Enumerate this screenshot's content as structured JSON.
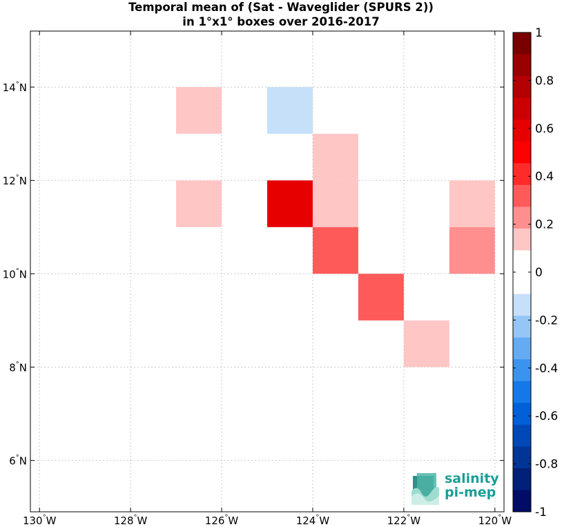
{
  "title": {
    "line1": "Temporal mean of (Sat - Waveglider (SPURS 2))",
    "line2": "in 1°x1° boxes over 2016-2017"
  },
  "logo": {
    "line1": "salinity",
    "line2": "pi-mep",
    "icon": "salinity-wave-logo-icon"
  },
  "chart_data": {
    "type": "heatmap",
    "title": "Temporal mean of (Sat - Waveglider (SPURS 2)) in 1°x1° boxes over 2016-2017",
    "x_axis": {
      "range": [
        -130.2,
        -119.8
      ],
      "ticks": [
        -130,
        -128,
        -126,
        -124,
        -122,
        -120
      ],
      "tick_labels": [
        "130°W",
        "128°W",
        "126°W",
        "124°W",
        "122°W",
        "120°W"
      ],
      "grid": true
    },
    "y_axis": {
      "range": [
        4.9,
        15.2
      ],
      "ticks": [
        6,
        8,
        10,
        12,
        14
      ],
      "tick_labels": [
        "6°N",
        "8°N",
        "10°N",
        "12°N",
        "14°N"
      ],
      "grid": true
    },
    "cells": [
      {
        "lon": [
          -127,
          -126
        ],
        "lat": [
          13,
          14
        ],
        "value": 0.15
      },
      {
        "lon": [
          -125,
          -124
        ],
        "lat": [
          13,
          14
        ],
        "value": -0.15
      },
      {
        "lon": [
          -124,
          -123
        ],
        "lat": [
          12,
          13
        ],
        "value": 0.15
      },
      {
        "lon": [
          -127,
          -126
        ],
        "lat": [
          11,
          12
        ],
        "value": 0.15
      },
      {
        "lon": [
          -125,
          -124
        ],
        "lat": [
          11,
          12
        ],
        "value": 0.55
      },
      {
        "lon": [
          -124,
          -123
        ],
        "lat": [
          11,
          12
        ],
        "value": 0.15
      },
      {
        "lon": [
          -121,
          -120
        ],
        "lat": [
          11,
          12
        ],
        "value": 0.15
      },
      {
        "lon": [
          -124,
          -123
        ],
        "lat": [
          10,
          11
        ],
        "value": 0.35
      },
      {
        "lon": [
          -121,
          -120
        ],
        "lat": [
          10,
          11
        ],
        "value": 0.25
      },
      {
        "lon": [
          -123,
          -122
        ],
        "lat": [
          9,
          10
        ],
        "value": 0.35
      },
      {
        "lon": [
          -122,
          -121
        ],
        "lat": [
          8,
          9
        ],
        "value": 0.15
      }
    ],
    "colorbar": {
      "range": [
        -1,
        1
      ],
      "ticks": [
        1,
        0.8,
        0.6,
        0.4,
        0.2,
        0,
        -0.2,
        -0.4,
        -0.6,
        -0.8,
        -1
      ],
      "tick_labels": [
        "1",
        "0.8",
        "0.6",
        "0.4",
        "0.2",
        "0",
        "-0.2",
        "-0.4",
        "-0.6",
        "-0.8",
        "-1"
      ],
      "colors_top_to_bottom": [
        "#7a0000",
        "#990000",
        "#b30000",
        "#cc0000",
        "#e60000",
        "#ff0000",
        "#ff2b2b",
        "#ff5a5a",
        "#ff8e8e",
        "#ffc6c6",
        "#ffffff",
        "#ffffff",
        "#c6e0fa",
        "#96c6f5",
        "#64abf2",
        "#3a93ee",
        "#1478e8",
        "#0060d8",
        "#0048b8",
        "#003496",
        "#00207a",
        "#000c66"
      ]
    }
  }
}
